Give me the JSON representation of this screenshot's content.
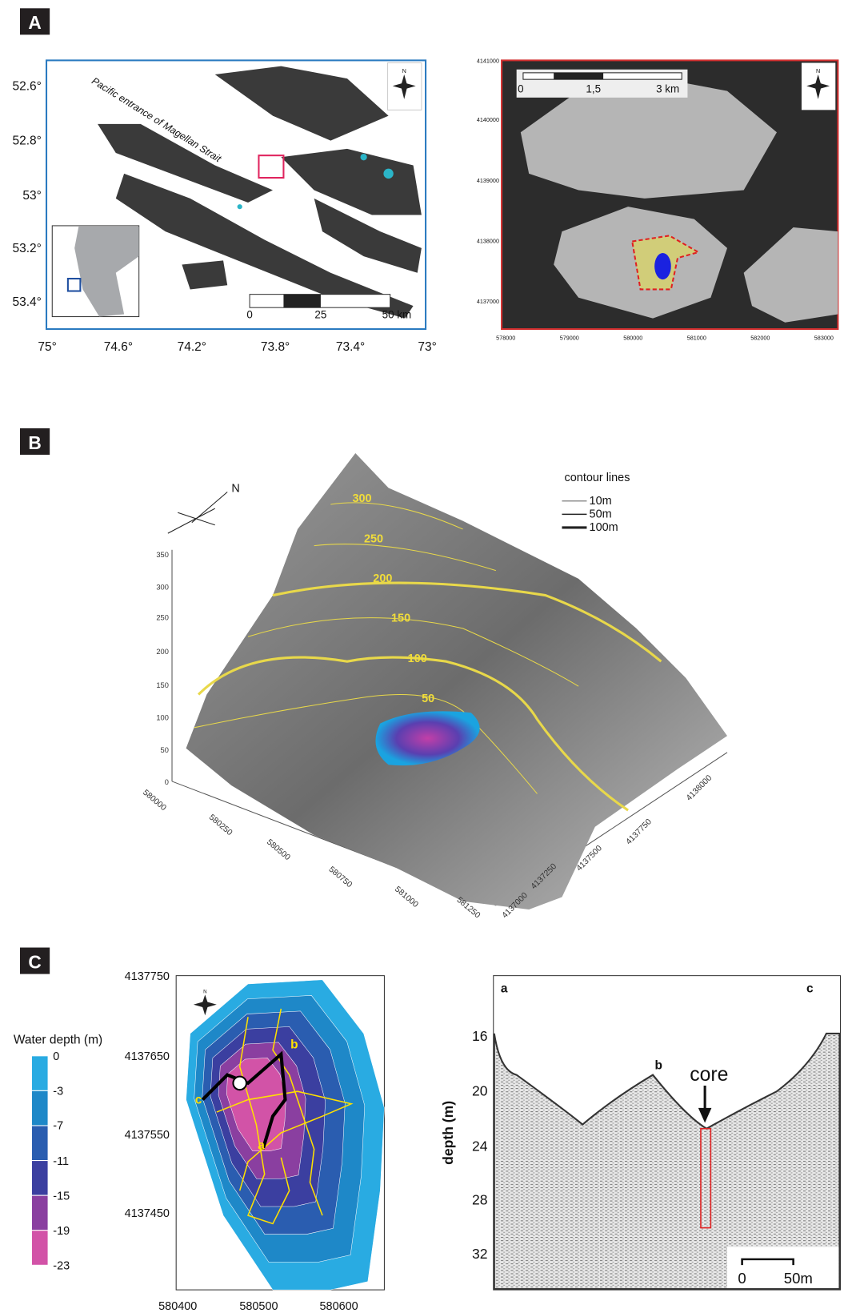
{
  "panel_a": {
    "label": "A",
    "map1": {
      "lat_labels": [
        "52.6°",
        "52.8°",
        "53°",
        "53.2°",
        "53.4°"
      ],
      "lon_labels": [
        "75°",
        "74.6°",
        "74.2°",
        "73.8°",
        "73.4°",
        "73°"
      ],
      "strait_label": "Pacific entrance of Magellan Strait",
      "compass": "N",
      "scale_labels": [
        "0",
        "25",
        "50 km"
      ]
    },
    "map2": {
      "y_labels": [
        "4141000",
        "4140000",
        "4139000",
        "4138000",
        "4137000"
      ],
      "x_labels": [
        "578000",
        "579000",
        "580000",
        "581000",
        "582000",
        "583000"
      ],
      "compass": "N",
      "scale_labels": [
        "0",
        "1,5",
        "3 km"
      ]
    }
  },
  "panel_b": {
    "label": "B",
    "north": "N",
    "legend_title": "contour lines",
    "legend_items": [
      "10m",
      "50m",
      "100m"
    ],
    "contour_labels": [
      "300",
      "250",
      "200",
      "150",
      "100",
      "50"
    ],
    "z_labels": [
      "350",
      "300",
      "250",
      "200",
      "150",
      "100",
      "50",
      "0"
    ],
    "x_labels": [
      "580000",
      "580250",
      "580500",
      "580750",
      "581000",
      "581250"
    ],
    "y_labels": [
      "4137000",
      "4137250",
      "4137500",
      "4137750",
      "4138000"
    ]
  },
  "panel_c": {
    "label": "C",
    "legend_title": "Water depth (m)",
    "depth_levels": [
      "0",
      "-3",
      "-7",
      "-11",
      "-15",
      "-19",
      "-23"
    ],
    "map": {
      "y_labels": [
        "4137750",
        "4137650",
        "4137550",
        "4137450"
      ],
      "x_labels": [
        "580400",
        "580500",
        "580600"
      ],
      "track_labels": [
        "a",
        "b",
        "c"
      ],
      "compass": "N"
    },
    "profile": {
      "y_title": "depth (m)",
      "y_labels": [
        "16",
        "20",
        "24",
        "28",
        "32"
      ],
      "point_labels": [
        "a",
        "b",
        "c"
      ],
      "core_label": "core",
      "scale_labels": [
        "0",
        "50m"
      ]
    }
  }
}
